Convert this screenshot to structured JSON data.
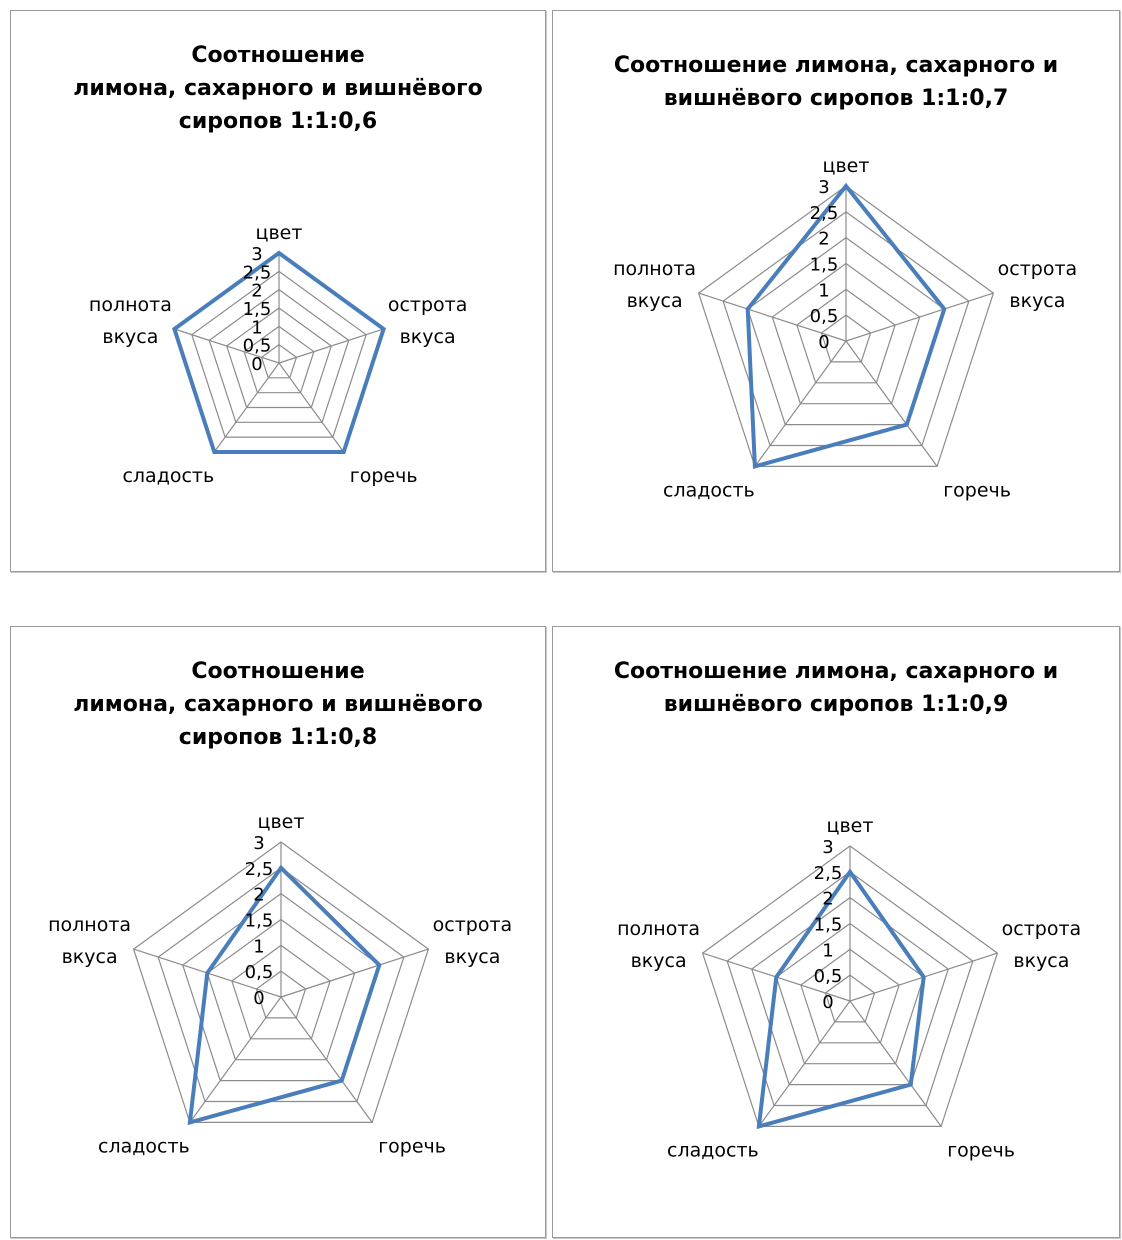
{
  "chart_data": [
    {
      "type": "radar",
      "title": "Соотношение\nлимона, сахарного и вишнёвого\nсиропов 1:1:0,6",
      "categories": [
        "цвет",
        "острота вкуса",
        "горечь",
        "сладость",
        "полнота вкуса"
      ],
      "rlim": [
        0,
        3
      ],
      "ticks": [
        "0",
        "0,5",
        "1",
        "1,5",
        "2",
        "2,5",
        "3"
      ],
      "values": [
        3,
        3,
        3,
        3,
        3
      ],
      "grid": true,
      "line_color": "#4a7ebb"
    },
    {
      "type": "radar",
      "title": "Соотношение лимона, сахарного и\nвишнёвого сиропов 1:1:0,7",
      "categories": [
        "цвет",
        "острота вкуса",
        "горечь",
        "сладость",
        "полнота вкуса"
      ],
      "rlim": [
        0,
        3
      ],
      "ticks": [
        "0",
        "0,5",
        "1",
        "1,5",
        "2",
        "2,5",
        "3"
      ],
      "values": [
        3,
        2,
        2,
        3,
        2
      ],
      "grid": true,
      "line_color": "#4a7ebb"
    },
    {
      "type": "radar",
      "title": "Соотношение\nлимона, сахарного и вишнёвого\nсиропов 1:1:0,8",
      "categories": [
        "цвет",
        "острота вкуса",
        "горечь",
        "сладость",
        "полнота вкуса"
      ],
      "rlim": [
        0,
        3
      ],
      "ticks": [
        "0",
        "0,5",
        "1",
        "1,5",
        "2",
        "2,5",
        "3"
      ],
      "values": [
        2.5,
        2,
        2,
        3,
        1.5
      ],
      "grid": true,
      "line_color": "#4a7ebb"
    },
    {
      "type": "radar",
      "title": "Соотношение лимона, сахарного и\nвишнёвого сиропов 1:1:0,9",
      "categories": [
        "цвет",
        "острота вкуса",
        "горечь",
        "сладость",
        "полнота вкуса"
      ],
      "rlim": [
        0,
        3
      ],
      "ticks": [
        "0",
        "0,5",
        "1",
        "1,5",
        "2",
        "2,5",
        "3"
      ],
      "values": [
        2.5,
        1.5,
        2,
        3,
        1.5
      ],
      "grid": true,
      "line_color": "#4a7ebb"
    }
  ]
}
